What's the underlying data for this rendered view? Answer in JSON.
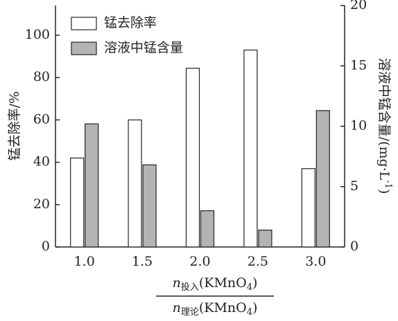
{
  "chart_data": {
    "type": "bar",
    "categories": [
      "1.0",
      "1.5",
      "2.0",
      "2.5",
      "3.0"
    ],
    "series": [
      {
        "name": "锰去除率",
        "color": "#ffffff",
        "values": [
          42,
          60,
          84.4,
          93,
          37
        ]
      },
      {
        "name": "溶液中锰含量",
        "color": "#b4b4b4",
        "axis": "y2",
        "values": [
          10.2,
          6.8,
          3.0,
          1.4,
          11.3
        ]
      }
    ],
    "ylim": [
      0,
      114
    ],
    "yticks": [
      0,
      20,
      40,
      60,
      80,
      100
    ],
    "y2lim": [
      0,
      20
    ],
    "y2ticks": [
      0,
      5,
      10,
      15,
      20
    ],
    "y_label": "锰去除率/%",
    "y2_label": [
      "溶液中锰含量/(mg·L",
      "-1",
      ")"
    ],
    "x_label_numerator": [
      "n",
      "投入",
      "(KMnO",
      "4",
      ")"
    ],
    "x_label_denominator": [
      "n",
      "理论",
      "(KMnO",
      "4",
      ")"
    ],
    "legend": "upper left"
  }
}
